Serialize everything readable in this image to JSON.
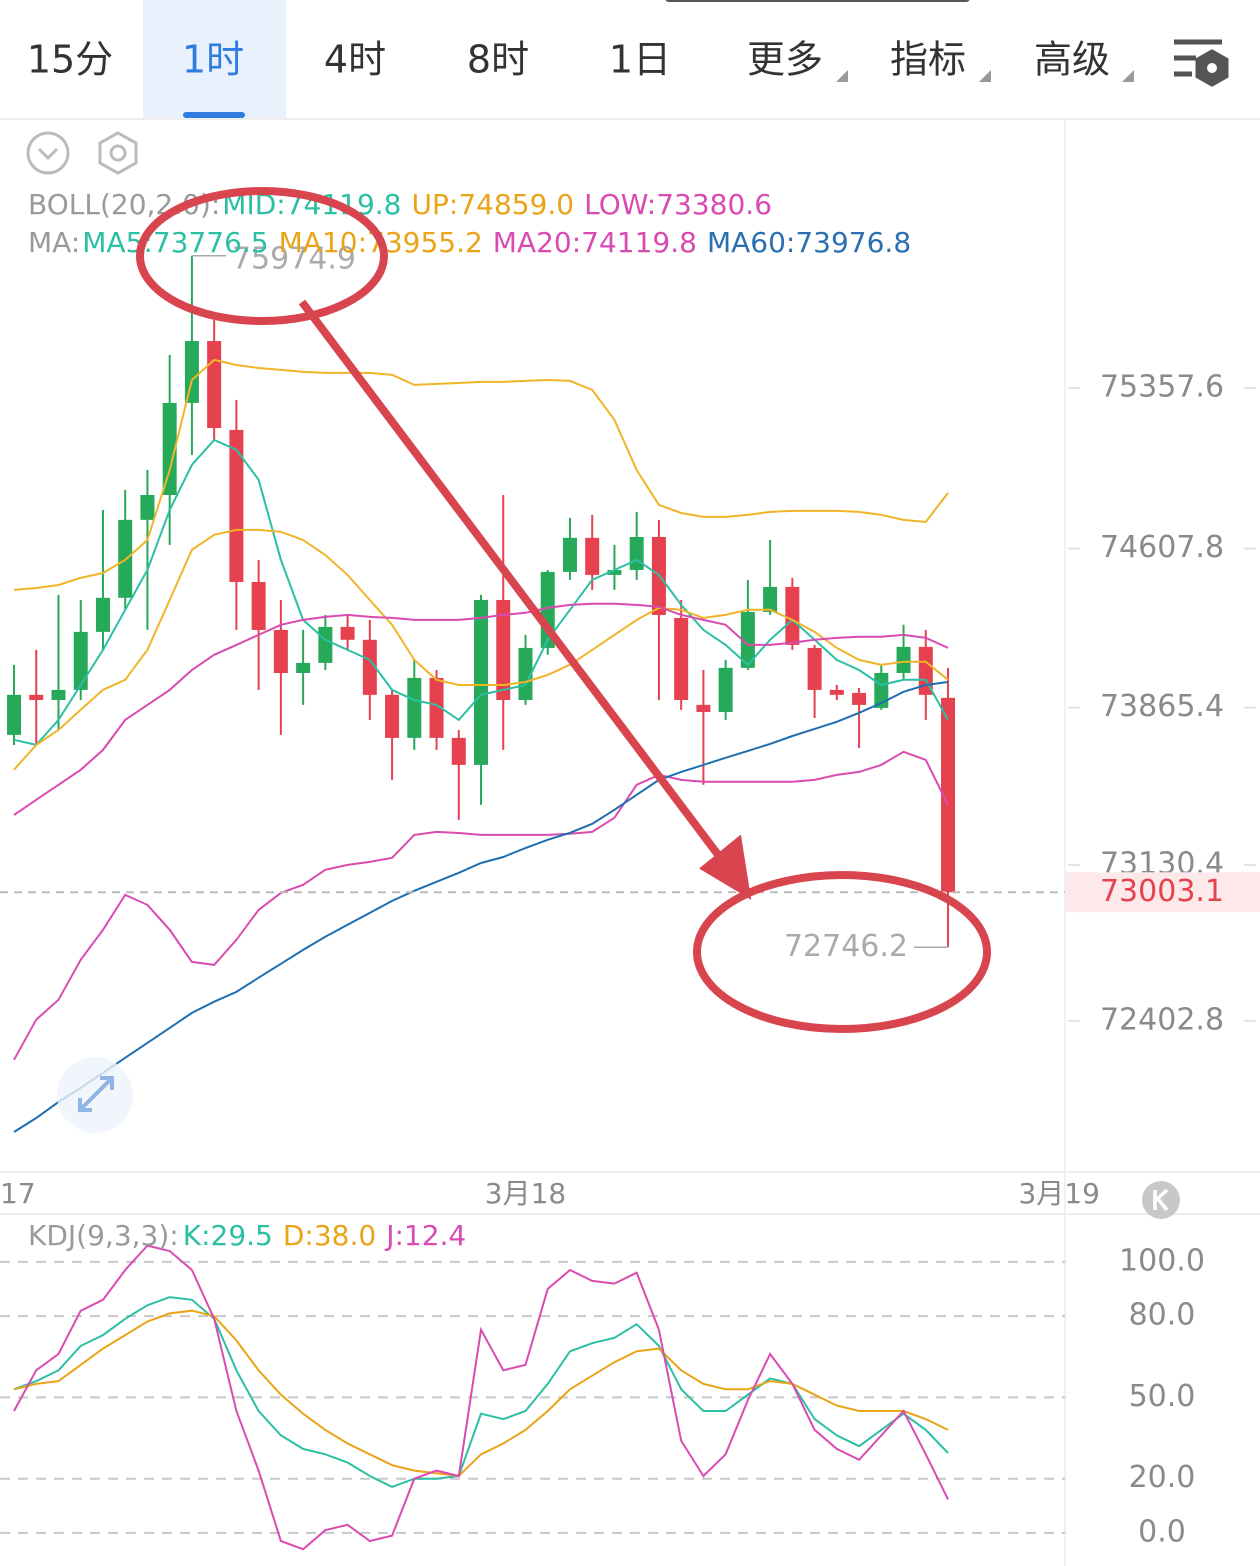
{
  "tabs": [
    "15分",
    "1时",
    "4时",
    "8时",
    "1日",
    "更多",
    "指标",
    "高级"
  ],
  "chart_data": [
    {
      "type": "candlestick",
      "legend": [
        {
          "label": "BOLL(20,2.0):",
          "items": [
            {
              "text": "MID:74119.8",
              "color": "#2bbfa4"
            },
            {
              "text": "UP:74859.0",
              "color": "#e9a418"
            },
            {
              "text": "LOW:73380.6",
              "color": "#d94bb0"
            }
          ]
        },
        {
          "label": "MA:",
          "items": [
            {
              "text": "MA5:73776.5",
              "color": "#2bbfa4"
            },
            {
              "text": "MA10:73955.2",
              "color": "#e9a418"
            },
            {
              "text": "MA20:74119.8",
              "color": "#d94bb0"
            },
            {
              "text": "MA60:73976.8",
              "color": "#2a70b0"
            }
          ]
        }
      ],
      "open": [
        73738,
        73925,
        73901,
        73948,
        74219,
        74378,
        74742,
        74858,
        75288,
        75577,
        75162,
        74452,
        74228,
        74027,
        74074,
        74242,
        74182,
        73925,
        73724,
        74004,
        73724,
        73598,
        74368,
        73901,
        74144,
        74499,
        74658,
        74485,
        74508,
        74662,
        74284,
        73878,
        73845,
        74051,
        74312,
        74429,
        74144,
        73948,
        73934,
        73864,
        74027,
        74149,
        73911
      ],
      "high": [
        74065,
        74135,
        74392,
        74368,
        74788,
        74882,
        74975,
        75512,
        75974.9,
        75675,
        75302,
        74555,
        74368,
        74228,
        74298,
        74298,
        74275,
        73948,
        74088,
        74041,
        73761,
        74392,
        74858,
        74205,
        74508,
        74751,
        74765,
        74625,
        74779,
        74742,
        74368,
        74041,
        74088,
        74462,
        74648,
        74471,
        74158,
        73971,
        73957,
        74065,
        74252,
        74228,
        74051
      ],
      "low": [
        73691,
        73691,
        73761,
        73901,
        74135,
        74322,
        74228,
        74625,
        75045,
        75115,
        74228,
        73948,
        73738,
        73878,
        74041,
        74135,
        73808,
        73528,
        73668,
        73668,
        73341,
        73411,
        73668,
        73878,
        74112,
        74462,
        74415,
        74415,
        74462,
        73901,
        73855,
        73505,
        73808,
        74041,
        74298,
        74135,
        73817,
        73901,
        73677,
        73855,
        73995,
        73808,
        72746.2
      ],
      "close": [
        73925,
        73901,
        73948,
        74219,
        74378,
        74742,
        74858,
        75288,
        75577,
        75171,
        74452,
        74228,
        74027,
        74074,
        74242,
        74182,
        73925,
        73724,
        74004,
        73724,
        73598,
        74368,
        73901,
        74144,
        74499,
        74658,
        74485,
        74508,
        74662,
        74298,
        73901,
        73845,
        74051,
        74312,
        74429,
        74158,
        73948,
        73925,
        73878,
        74027,
        74149,
        73925,
        73003.1
      ],
      "up_color": "#27a95a",
      "down_color": "#e5414e",
      "series": [
        {
          "color": "#f0b429",
          "values": [
            74415,
            74424,
            74438,
            74471,
            74494,
            74555,
            74648,
            74975,
            75395,
            75489,
            75465,
            75451,
            75442,
            75433,
            75428,
            75428,
            75428,
            75419,
            75372,
            75377,
            75381,
            75386,
            75386,
            75391,
            75395,
            75391,
            75349,
            75209,
            74975,
            74812,
            74774,
            74756,
            74756,
            74765,
            74779,
            74784,
            74784,
            74784,
            74779,
            74765,
            74742,
            74732,
            74868
          ]
        },
        {
          "color": "#d94bb0",
          "values": [
            72221,
            72408,
            72501,
            72688,
            72828,
            72991,
            72944,
            72828,
            72678,
            72664,
            72781,
            72921,
            73000,
            73038,
            73108,
            73131,
            73145,
            73164,
            73271,
            73285,
            73280,
            73271,
            73271,
            73271,
            73271,
            73276,
            73285,
            73351,
            73505,
            73551,
            73528,
            73519,
            73519,
            73519,
            73519,
            73519,
            73528,
            73551,
            73565,
            73598,
            73659,
            73621,
            73411
          ]
        },
        {
          "color": "#2bbfa4",
          "values": [
            73715,
            73691,
            73808,
            73971,
            74135,
            74322,
            74508,
            74788,
            74999,
            75115,
            75069,
            74929,
            74555,
            74275,
            74182,
            74135,
            74088,
            73948,
            73901,
            73878,
            73808,
            73925,
            73948,
            73971,
            74182,
            74322,
            74462,
            74508,
            74555,
            74485,
            74345,
            74228,
            74158,
            74065,
            74182,
            74275,
            74182,
            74088,
            74041,
            73971,
            73995,
            73995,
            73808
          ]
        },
        {
          "color": "#f0b429",
          "values": [
            73575,
            73691,
            73761,
            73855,
            73948,
            73995,
            74135,
            74368,
            74602,
            74672,
            74695,
            74695,
            74686,
            74648,
            74578,
            74485,
            74368,
            74252,
            74088,
            73995,
            73971,
            73971,
            73971,
            73985,
            74018,
            74065,
            74135,
            74205,
            74275,
            74331,
            74322,
            74284,
            74298,
            74322,
            74322,
            74275,
            74219,
            74144,
            74088,
            74065,
            74079,
            74079,
            73995
          ]
        },
        {
          "color": "#d94bb0",
          "values": [
            73364,
            73435,
            73505,
            73575,
            73668,
            73808,
            73878,
            73948,
            74041,
            74112,
            74158,
            74205,
            74252,
            74275,
            74289,
            74298,
            74289,
            74284,
            74275,
            74275,
            74275,
            74284,
            74298,
            74308,
            74331,
            74345,
            74350,
            74350,
            74345,
            74336,
            74298,
            74275,
            74252,
            74158,
            74158,
            74168,
            74182,
            74191,
            74196,
            74196,
            74205,
            74191,
            74144
          ]
        },
        {
          "color": "#1f6fb0",
          "values": [
            71884,
            71949,
            72024,
            72090,
            72160,
            72230,
            72300,
            72370,
            72440,
            72492,
            72538,
            72604,
            72669,
            72734,
            72795,
            72851,
            72907,
            72963,
            73010,
            73052,
            73094,
            73140,
            73168,
            73210,
            73248,
            73281,
            73323,
            73388,
            73458,
            73528,
            73565,
            73598,
            73631,
            73663,
            73696,
            73733,
            73766,
            73799,
            73841,
            73887,
            73939,
            73971,
            73985
          ]
        }
      ],
      "ylim": [
        71697,
        76609
      ],
      "yticks": [
        75357.6,
        74607.8,
        73865.4,
        73130.4,
        72402.8
      ],
      "xlim": [
        -0.63,
        47.26
      ],
      "xticks": [
        {
          "value": -1,
          "label": "17"
        },
        {
          "value": 23,
          "label": "3月18"
        },
        {
          "value": 47,
          "label": "3月19"
        }
      ],
      "grid": false
    },
    {
      "type": "line",
      "title": "KDJ(9,3,3):",
      "series": [
        {
          "name": "K:29.5",
          "color": "#2bbfa4",
          "values": [
            53,
            56,
            60,
            69,
            73,
            79,
            84,
            87,
            86,
            79,
            60,
            45,
            36,
            31,
            29,
            26,
            21,
            17,
            20,
            20,
            21,
            44,
            42,
            45,
            55,
            67,
            70,
            72,
            77,
            69,
            53,
            45,
            45,
            51,
            57,
            55,
            42,
            36,
            32,
            38,
            44,
            38,
            29.5
          ]
        },
        {
          "name": "D:38.0",
          "color": "#e9a418",
          "values": [
            53,
            55,
            56,
            62,
            68,
            73,
            78,
            81,
            82,
            80,
            71,
            60,
            51,
            44,
            38,
            33,
            29,
            25,
            23,
            22,
            21,
            29,
            33,
            38,
            45,
            53,
            58,
            63,
            67,
            68,
            60,
            55,
            53,
            53,
            56,
            55,
            51,
            47,
            45,
            45,
            45,
            42,
            38
          ]
        },
        {
          "name": "J:12.4",
          "color": "#d94bb0",
          "values": [
            45,
            60,
            66,
            82,
            86,
            97,
            106,
            104,
            97,
            79,
            45,
            23,
            -3,
            -6,
            1,
            3,
            -3,
            -1,
            20,
            23,
            21,
            75,
            60,
            62,
            90,
            97,
            93,
            92,
            96,
            75,
            34,
            21,
            29,
            49,
            66,
            55,
            38,
            31,
            27,
            36,
            45,
            29,
            12.4
          ]
        }
      ],
      "ylim": [
        -12.2,
        117.3
      ],
      "yticks": [
        {
          "value": 100,
          "label": "100.0"
        },
        {
          "value": 80,
          "label": "80.0"
        },
        {
          "value": 50,
          "label": "50.0"
        },
        {
          "value": 20,
          "label": "20.0"
        },
        {
          "value": 0,
          "label": "0.0"
        }
      ],
      "xlim": [
        -0.63,
        47.26
      ],
      "grid": true
    }
  ]
}
